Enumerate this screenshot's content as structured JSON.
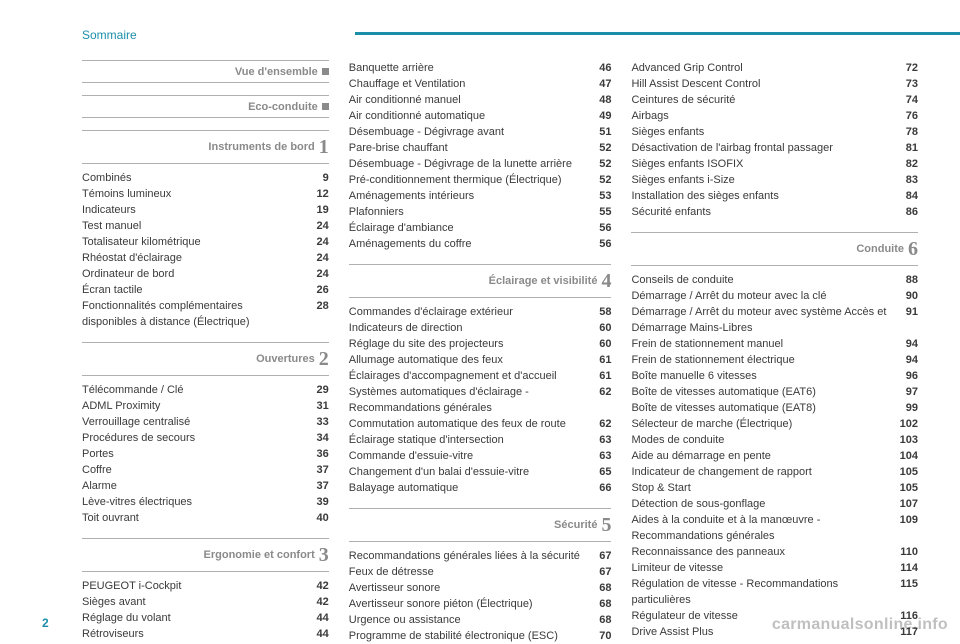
{
  "header": {
    "title": "Sommaire"
  },
  "page_number": "2",
  "watermark": "carmanualsonline.info",
  "colors": {
    "accent": "#1b8faa",
    "section_text": "#8a8a8a",
    "body_text": "#3a3a3a",
    "rule": "#b0b0b0",
    "background": "#ffffff"
  },
  "col1": {
    "s0": {
      "title": "Vue d'ensemble",
      "marker": "square"
    },
    "s1": {
      "title": "Eco-conduite",
      "marker": "square"
    },
    "s2": {
      "title": "Instruments de bord",
      "chap": "1",
      "items": [
        {
          "label": "Combinés",
          "pg": "9"
        },
        {
          "label": "Témoins lumineux",
          "pg": "12"
        },
        {
          "label": "Indicateurs",
          "pg": "19"
        },
        {
          "label": "Test manuel",
          "pg": "24"
        },
        {
          "label": "Totalisateur kilométrique",
          "pg": "24"
        },
        {
          "label": "Rhéostat d'éclairage",
          "pg": "24"
        },
        {
          "label": "Ordinateur de bord",
          "pg": "24"
        },
        {
          "label": "Écran tactile",
          "pg": "26"
        },
        {
          "label": "Fonctionnalités complémentaires disponibles à distance (Électrique)",
          "pg": "28"
        }
      ]
    },
    "s3": {
      "title": "Ouvertures",
      "chap": "2",
      "items": [
        {
          "label": "Télécommande / Clé",
          "pg": "29"
        },
        {
          "label": "ADML Proximity",
          "pg": "31"
        },
        {
          "label": "Verrouillage centralisé",
          "pg": "33"
        },
        {
          "label": "Procédures de secours",
          "pg": "34"
        },
        {
          "label": "Portes",
          "pg": "36"
        },
        {
          "label": "Coffre",
          "pg": "37"
        },
        {
          "label": "Alarme",
          "pg": "37"
        },
        {
          "label": "Lève-vitres électriques",
          "pg": "39"
        },
        {
          "label": "Toit ouvrant",
          "pg": "40"
        }
      ]
    },
    "s4": {
      "title": "Ergonomie et confort",
      "chap": "3",
      "items": [
        {
          "label": "PEUGEOT i-Cockpit",
          "pg": "42"
        },
        {
          "label": "Sièges avant",
          "pg": "42"
        },
        {
          "label": "Réglage du volant",
          "pg": "44"
        },
        {
          "label": "Rétroviseurs",
          "pg": "44"
        }
      ]
    }
  },
  "col2": {
    "lead": [
      {
        "label": "Banquette arrière",
        "pg": "46"
      },
      {
        "label": "Chauffage et Ventilation",
        "pg": "47"
      },
      {
        "label": "Air conditionné manuel",
        "pg": "48"
      },
      {
        "label": "Air conditionné automatique",
        "pg": "49"
      },
      {
        "label": "Désembuage - Dégivrage avant",
        "pg": "51"
      },
      {
        "label": "Pare-brise chauffant",
        "pg": "52"
      },
      {
        "label": "Désembuage - Dégivrage de la lunette arrière",
        "pg": "52"
      },
      {
        "label": "Pré-conditionnement thermique (Électrique)",
        "pg": "52"
      },
      {
        "label": "Aménagements intérieurs",
        "pg": "53"
      },
      {
        "label": "Plafonniers",
        "pg": "55"
      },
      {
        "label": "Éclairage d'ambiance",
        "pg": "56"
      },
      {
        "label": "Aménagements du coffre",
        "pg": "56"
      }
    ],
    "s4": {
      "title": "Éclairage et visibilité",
      "chap": "4",
      "items": [
        {
          "label": "Commandes d'éclairage extérieur",
          "pg": "58"
        },
        {
          "label": "Indicateurs de direction",
          "pg": "60"
        },
        {
          "label": "Réglage du site des projecteurs",
          "pg": "60"
        },
        {
          "label": "Allumage automatique des feux",
          "pg": "61"
        },
        {
          "label": "Éclairages d'accompagnement et d'accueil",
          "pg": "61"
        },
        {
          "label": "Systèmes automatiques d'éclairage - Recommandations générales",
          "pg": "62"
        },
        {
          "label": "Commutation automatique des feux de route",
          "pg": "62"
        },
        {
          "label": "Éclairage statique d'intersection",
          "pg": "63"
        },
        {
          "label": "Commande d'essuie-vitre",
          "pg": "63"
        },
        {
          "label": "Changement d'un balai d'essuie-vitre",
          "pg": "65"
        },
        {
          "label": "Balayage automatique",
          "pg": "66"
        }
      ]
    },
    "s5": {
      "title": "Sécurité",
      "chap": "5",
      "items": [
        {
          "label": "Recommandations générales liées à la sécurité",
          "pg": "67"
        },
        {
          "label": "Feux de détresse",
          "pg": "67"
        },
        {
          "label": "Avertisseur sonore",
          "pg": "68"
        },
        {
          "label": "Avertisseur sonore piéton (Électrique)",
          "pg": "68"
        },
        {
          "label": "Urgence ou assistance",
          "pg": "68"
        },
        {
          "label": "Programme de stabilité électronique (ESC)",
          "pg": "70"
        }
      ]
    }
  },
  "col3": {
    "lead": [
      {
        "label": "Advanced Grip Control",
        "pg": "72"
      },
      {
        "label": "Hill Assist Descent Control",
        "pg": "73"
      },
      {
        "label": "Ceintures de sécurité",
        "pg": "74"
      },
      {
        "label": "Airbags",
        "pg": "76"
      },
      {
        "label": "Sièges enfants",
        "pg": "78"
      },
      {
        "label": "Désactivation de l'airbag frontal passager",
        "pg": "81"
      },
      {
        "label": "Sièges enfants ISOFIX",
        "pg": "82"
      },
      {
        "label": "Sièges enfants i-Size",
        "pg": "83"
      },
      {
        "label": "Installation des sièges enfants",
        "pg": "84"
      },
      {
        "label": "Sécurité enfants",
        "pg": "86"
      }
    ],
    "s6": {
      "title": "Conduite",
      "chap": "6",
      "items": [
        {
          "label": "Conseils de conduite",
          "pg": "88"
        },
        {
          "label": "Démarrage / Arrêt du moteur avec la clé",
          "pg": "90"
        },
        {
          "label": "Démarrage / Arrêt du moteur avec système Accès et Démarrage Mains-Libres",
          "pg": "91"
        },
        {
          "label": "Frein de stationnement manuel",
          "pg": "94"
        },
        {
          "label": "Frein de stationnement électrique",
          "pg": "94"
        },
        {
          "label": "Boîte manuelle 6 vitesses",
          "pg": "96"
        },
        {
          "label": "Boîte de vitesses automatique (EAT6)",
          "pg": "97"
        },
        {
          "label": "Boîte de vitesses automatique (EAT8)",
          "pg": "99"
        },
        {
          "label": "Sélecteur de marche (Électrique)",
          "pg": "102"
        },
        {
          "label": "Modes de conduite",
          "pg": "103"
        },
        {
          "label": "Aide au démarrage en pente",
          "pg": "104"
        },
        {
          "label": "Indicateur de changement de rapport",
          "pg": "105"
        },
        {
          "label": "Stop & Start",
          "pg": "105"
        },
        {
          "label": "Détection de sous-gonflage",
          "pg": "107"
        },
        {
          "label": "Aides à la conduite et à la manœuvre - Recommandations générales",
          "pg": "109"
        },
        {
          "label": "Reconnaissance des panneaux",
          "pg": "110"
        },
        {
          "label": "Limiteur de vitesse",
          "pg": "114"
        },
        {
          "label": "Régulation de vitesse - Recommandations particulières",
          "pg": "115"
        },
        {
          "label": "Régulateur de vitesse",
          "pg": "116"
        },
        {
          "label": "Drive Assist Plus",
          "pg": "117"
        }
      ]
    }
  }
}
